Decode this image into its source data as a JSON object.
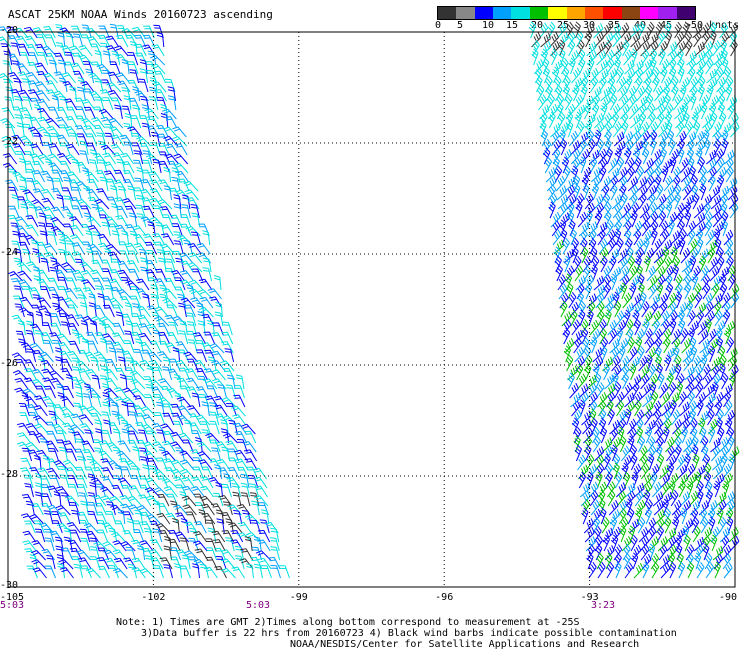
{
  "title": "ASCAT 25KM NOAA Winds 20160723 ascending",
  "colorbar": {
    "colors": [
      "#333333",
      "#888888",
      "#0000ff",
      "#00a0ff",
      "#00e0e0",
      "#00c000",
      "#ffff00",
      "#ffa500",
      "#ff5000",
      "#ff0000",
      "#8b4513",
      "#ff00ff",
      "#a020f0",
      "#400070"
    ],
    "ticks": [
      "0",
      "5",
      "10",
      "15",
      "20",
      "25",
      "30",
      "35",
      "40",
      "45",
      ">50 knots"
    ]
  },
  "map": {
    "lat_labels": [
      "-20",
      "-22",
      "-24",
      "-26",
      "-28",
      "-30"
    ],
    "lon_labels": [
      "-105",
      "-102",
      "-99",
      "-96",
      "-93",
      "-90"
    ],
    "time_labels": [
      "5:03",
      "5:03",
      "3:23"
    ],
    "lat_range": [
      -30,
      -20
    ],
    "lon_range": [
      -105,
      -90
    ]
  },
  "notes": {
    "line1": "Note: 1) Times are GMT 2)Times along bottom correspond to measurement at -25S",
    "line2": "3)Data buffer is 22 hrs from 20160723 4) Black wind barbs indicate possible contamination",
    "line3": "NOAA/NESDIS/Center for Satellite Applications and Research"
  }
}
